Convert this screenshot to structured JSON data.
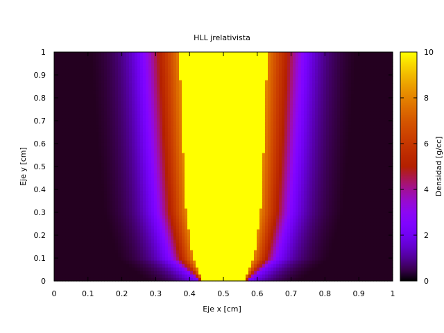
{
  "chart_data": {
    "type": "heatmap",
    "title": "HLL jrelativista",
    "xlabel": "Eje x [cm]",
    "ylabel": "Eje y [cm]",
    "colorbar_label": "Densidad [g/cc]",
    "xlim": [
      0,
      1
    ],
    "ylim": [
      0,
      1
    ],
    "clim": [
      0,
      10
    ],
    "x_ticks": [
      "0",
      "0.1",
      "0.2",
      "0.3",
      "0.4",
      "0.5",
      "0.6",
      "0.7",
      "0.8",
      "0.9",
      "1"
    ],
    "y_ticks": [
      "0",
      "0.1",
      "0.2",
      "0.3",
      "0.4",
      "0.5",
      "0.6",
      "0.7",
      "0.8",
      "0.9",
      "1"
    ],
    "colorbar_ticks": [
      "0",
      "2",
      "4",
      "6",
      "8",
      "10"
    ],
    "colormap": "gnuplot",
    "structure": {
      "description_values": "symmetric high-density jet centered at x=0.5",
      "jet_core_half_width_at_y": [
        [
          0.0,
          0.06
        ],
        [
          0.1,
          0.09
        ],
        [
          0.3,
          0.11
        ],
        [
          0.6,
          0.12
        ],
        [
          1.0,
          0.13
        ]
      ],
      "outer_shell_half_width_at_y": [
        [
          0.0,
          0.07
        ],
        [
          0.1,
          0.16
        ],
        [
          0.3,
          0.2
        ],
        [
          0.6,
          0.22
        ],
        [
          1.0,
          0.24
        ]
      ],
      "peak_density": 10,
      "background_density": 0.2
    }
  }
}
